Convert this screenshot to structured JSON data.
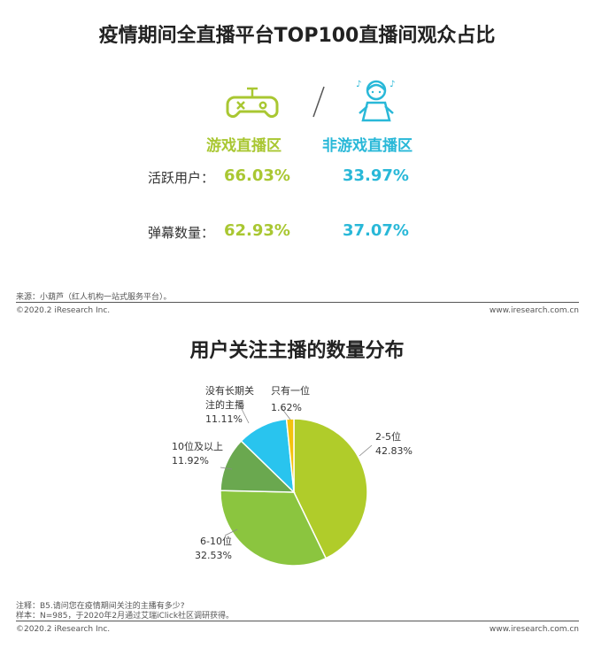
{
  "top": {
    "title": "疫情期间全直播平台TOP100直播间观众占比",
    "categories": [
      "游戏直播区",
      "非游戏直播区"
    ],
    "rows": [
      {
        "label": "活跃用户：",
        "values": [
          "66.03%",
          "33.97%"
        ]
      },
      {
        "label": "弹幕数量：",
        "values": [
          "62.93%",
          "37.07%"
        ]
      }
    ],
    "icons": [
      "gamepad-icon",
      "person-icon"
    ],
    "source": "来源：小葫芦（红人机构一站式服务平台）。",
    "copyright": "©2020.2 iResearch Inc.",
    "website": "www.iresearch.com.cn"
  },
  "bottom": {
    "title": "用户关注主播的数量分布",
    "note": "注释：B5.请问您在疫情期间关注的主播有多少?",
    "sample": "样本：N=985，于2020年2月通过艾瑞iClick社区调研获得。",
    "copyright": "©2020.2 iResearch Inc.",
    "website": "www.iresearch.com.cn"
  },
  "chart_data": {
    "type": "pie",
    "title": "用户关注主播的数量分布",
    "slices": [
      {
        "name": "2-5位",
        "value": 42.83,
        "label": "42.83%",
        "color": "#b0cc2a"
      },
      {
        "name": "6-10位",
        "value": 32.53,
        "label": "32.53%",
        "color": "#8bc53f"
      },
      {
        "name": "10位及以上",
        "value": 11.92,
        "label": "11.92%",
        "color": "#6aa84f"
      },
      {
        "name": "没有长期关注的主播",
        "name_lines": [
          "没有长期关",
          "注的主播"
        ],
        "value": 11.11,
        "label": "11.11%",
        "color": "#29c4ee"
      },
      {
        "name": "只有一位",
        "value": 1.62,
        "label": "1.62%",
        "color": "#f4c20d"
      }
    ]
  }
}
